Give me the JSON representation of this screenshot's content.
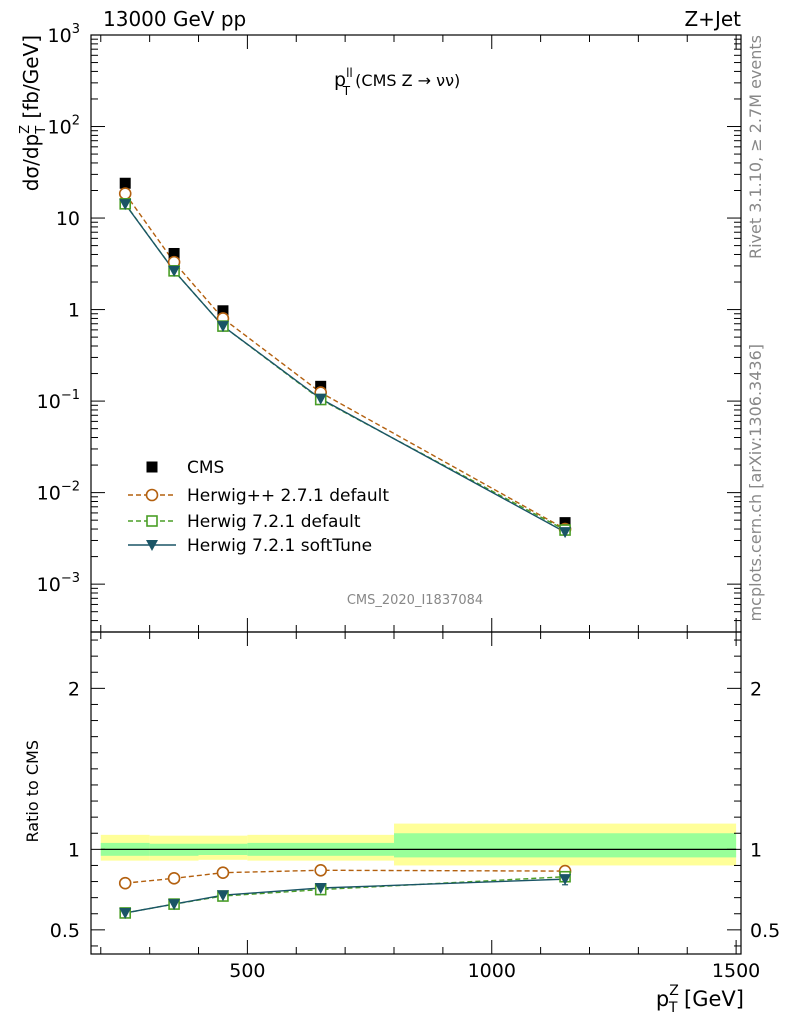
{
  "header": {
    "left": "13000 GeV pp",
    "right": "Z+Jet"
  },
  "plot_title": {
    "main": "p",
    "sup": "ll",
    "sub": "T",
    "rest": " (CMS Z → νν)"
  },
  "side_text": {
    "rivet": "Rivet 3.1.10, ≥ 2.7M events",
    "mcplots": "mcplots.cern.ch [arXiv:1306.3436]"
  },
  "watermark": "CMS_2020_I1837084",
  "axes": {
    "main_ylabel": {
      "a": "dσ/dp",
      "sub": "T",
      "sup": "Z",
      "b": " [fb/GeV]"
    },
    "ratio_ylabel": "Ratio to CMS",
    "xlabel": {
      "a": "p",
      "sub": "T",
      "sup": "Z",
      "b": " [GeV]"
    },
    "main_yticks": [
      {
        "base": "10",
        "exp": "3"
      },
      {
        "base": "10",
        "exp": "2"
      },
      {
        "base": "10",
        "exp": ""
      },
      {
        "base": "1",
        "exp": ""
      },
      {
        "base": "10",
        "exp": "−1"
      },
      {
        "base": "10",
        "exp": "−2"
      },
      {
        "base": "10",
        "exp": "−3"
      }
    ],
    "ratio_yticks": [
      "2",
      "1",
      "0.5"
    ],
    "xticks": [
      "500",
      "1000",
      "1500"
    ]
  },
  "legend": [
    "CMS",
    "Herwig++ 2.7.1 default",
    "Herwig 7.2.1 default",
    "Herwig 7.2.1 softTune"
  ],
  "colors": {
    "data": "#000000",
    "herwigpp": "#b3600f",
    "herwig7": "#4a9e26",
    "softtune": "#1a5566",
    "band_outer": "#ffff99",
    "band_inner": "#99ff99"
  },
  "chart_data": [
    {
      "type": "scatter",
      "panel": "main",
      "log_y": true,
      "xlim": [
        180,
        1510
      ],
      "ylim": [
        0.0003,
        1000
      ],
      "x": [
        250,
        350,
        450,
        650,
        1150
      ],
      "series": [
        {
          "name": "CMS",
          "values": [
            24,
            4.1,
            0.97,
            0.145,
            0.0047
          ]
        },
        {
          "name": "Herwig++ 2.7.1 default",
          "values": [
            18.5,
            3.3,
            0.8,
            0.124,
            0.004
          ]
        },
        {
          "name": "Herwig 7.2.1 default",
          "values": [
            14.3,
            2.65,
            0.66,
            0.104,
            0.0039
          ]
        },
        {
          "name": "Herwig 7.2.1 softTune",
          "values": [
            14.2,
            2.65,
            0.66,
            0.106,
            0.0037
          ]
        }
      ]
    },
    {
      "type": "line",
      "panel": "ratio",
      "ylim": [
        0.35,
        2.35
      ],
      "x": [
        250,
        350,
        450,
        650,
        1150
      ],
      "series": [
        {
          "name": "Herwig++ 2.7.1 default",
          "values": [
            0.79,
            0.82,
            0.855,
            0.87,
            0.865
          ]
        },
        {
          "name": "Herwig 7.2.1 default",
          "values": [
            0.605,
            0.66,
            0.71,
            0.75,
            0.83
          ]
        },
        {
          "name": "Herwig 7.2.1 softTune",
          "values": [
            0.605,
            0.66,
            0.715,
            0.76,
            0.815
          ]
        }
      ],
      "uncertainty_bands": [
        {
          "x_from": 200,
          "x_to": 300,
          "outer": [
            0.93,
            1.09
          ],
          "inner": [
            0.96,
            1.04
          ]
        },
        {
          "x_from": 300,
          "x_to": 400,
          "outer": [
            0.93,
            1.085
          ],
          "inner": [
            0.96,
            1.035
          ]
        },
        {
          "x_from": 400,
          "x_to": 500,
          "outer": [
            0.935,
            1.085
          ],
          "inner": [
            0.965,
            1.035
          ]
        },
        {
          "x_from": 500,
          "x_to": 800,
          "outer": [
            0.93,
            1.09
          ],
          "inner": [
            0.96,
            1.04
          ]
        },
        {
          "x_from": 800,
          "x_to": 1500,
          "outer": [
            0.9,
            1.16
          ],
          "inner": [
            0.95,
            1.1
          ]
        }
      ]
    }
  ]
}
